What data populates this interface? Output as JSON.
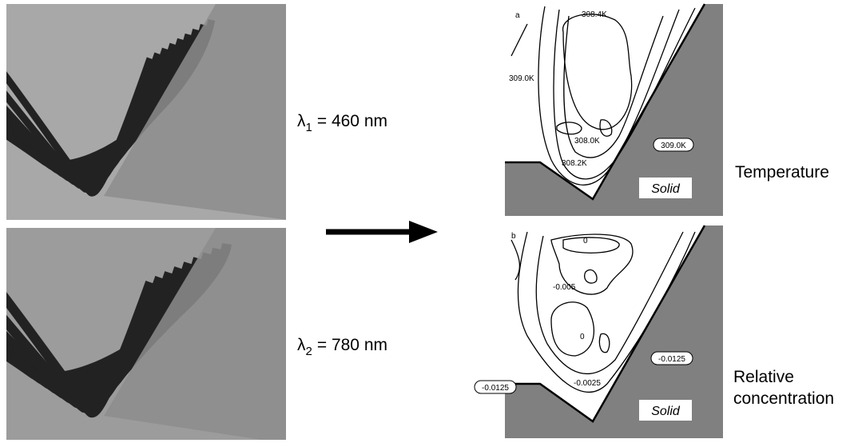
{
  "left_labels": [
    {
      "symbol": "λ",
      "subscript": "1",
      "text": "= 460 nm"
    },
    {
      "symbol": "λ",
      "subscript": "2",
      "text": "= 780 nm"
    }
  ],
  "panels": [
    {
      "letter": "a",
      "contour_labels": [
        "308.4K",
        "309.0K",
        "308.0K",
        "308.2K"
      ],
      "boxed_label": "309.0K",
      "region": "Solid",
      "caption": "Temperature"
    },
    {
      "letter": "b",
      "contour_labels": [
        "0",
        "-0.005",
        "0",
        "-0.0025"
      ],
      "boxed_labels": [
        "-0.0125",
        "-0.0125"
      ],
      "region": "Solid",
      "caption": [
        "Relative",
        "concentration"
      ]
    }
  ]
}
